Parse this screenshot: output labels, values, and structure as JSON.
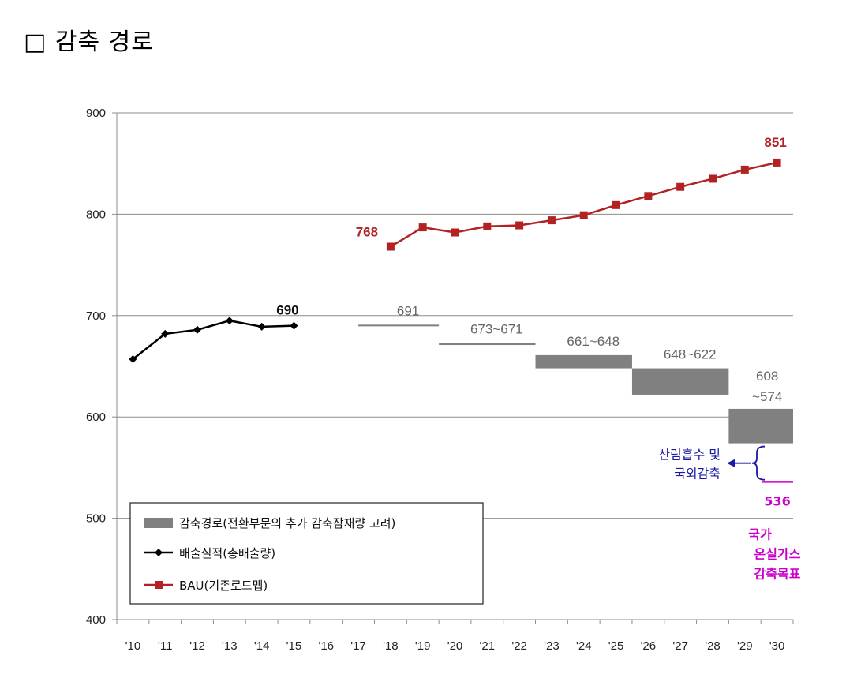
{
  "heading": "□ 감축 경로",
  "chart_data": {
    "type": "line",
    "categories": [
      "'10",
      "'11",
      "'12",
      "'13",
      "'14",
      "'15",
      "'16",
      "'17",
      "'18",
      "'19",
      "'20",
      "'21",
      "'22",
      "'23",
      "'24",
      "'25",
      "'26",
      "'27",
      "'28",
      "'29",
      "'30"
    ],
    "ylim": [
      400,
      900
    ],
    "yticks": [
      400,
      500,
      600,
      700,
      800,
      900
    ],
    "grid": true,
    "series": [
      {
        "name": "배출실적(총배출량)",
        "type": "line",
        "color": "#000000",
        "marker": "diamond",
        "x": [
          "'10",
          "'11",
          "'12",
          "'13",
          "'14",
          "'15"
        ],
        "values": [
          657,
          682,
          686,
          695,
          689,
          690
        ]
      },
      {
        "name": "BAU(기존로드맵)",
        "type": "line",
        "color": "#b22222",
        "marker": "square",
        "x": [
          "'18",
          "'19",
          "'20",
          "'21",
          "'22",
          "'23",
          "'24",
          "'25",
          "'26",
          "'27",
          "'28",
          "'29",
          "'30"
        ],
        "values": [
          768,
          787,
          782,
          788,
          789,
          794,
          799,
          809,
          818,
          827,
          835,
          844,
          851
        ]
      },
      {
        "name": "감축경로(전환부문의 추가 감축잠재량 고려)",
        "type": "range-bar",
        "color": "#808080",
        "segments": [
          {
            "from": "'17",
            "to": "'20",
            "high": 691,
            "low": 691,
            "label": "691"
          },
          {
            "from": "'20",
            "to": "'23",
            "high": 673,
            "low": 671,
            "label": "673~671"
          },
          {
            "from": "'23",
            "to": "'26",
            "high": 661,
            "low": 648,
            "label": "661~648"
          },
          {
            "from": "'26",
            "to": "'29",
            "high": 648,
            "low": 622,
            "label": "648~622"
          },
          {
            "from": "'29",
            "to": "'30",
            "high": 608,
            "low": 574,
            "label_lines": [
              "608",
              "~574"
            ]
          }
        ]
      }
    ],
    "point_labels": {
      "actual_last": "690",
      "bau_first": "768",
      "bau_last": "851"
    },
    "target": {
      "value": 536,
      "label": "536",
      "color": "#cc00cc",
      "caption_lines": [
        "국가",
        "온실가스",
        "감축목표"
      ]
    },
    "annotation": {
      "lines": [
        "산림흡수 및",
        "국외감축"
      ],
      "color": "#1a1aa6"
    },
    "legend": {
      "position": "bottom-left",
      "items": [
        "감축경로(전환부문의  추가 감축잠재량 고려)",
        "배출실적(총배출량)",
        "BAU(기존로드맵)"
      ]
    }
  }
}
